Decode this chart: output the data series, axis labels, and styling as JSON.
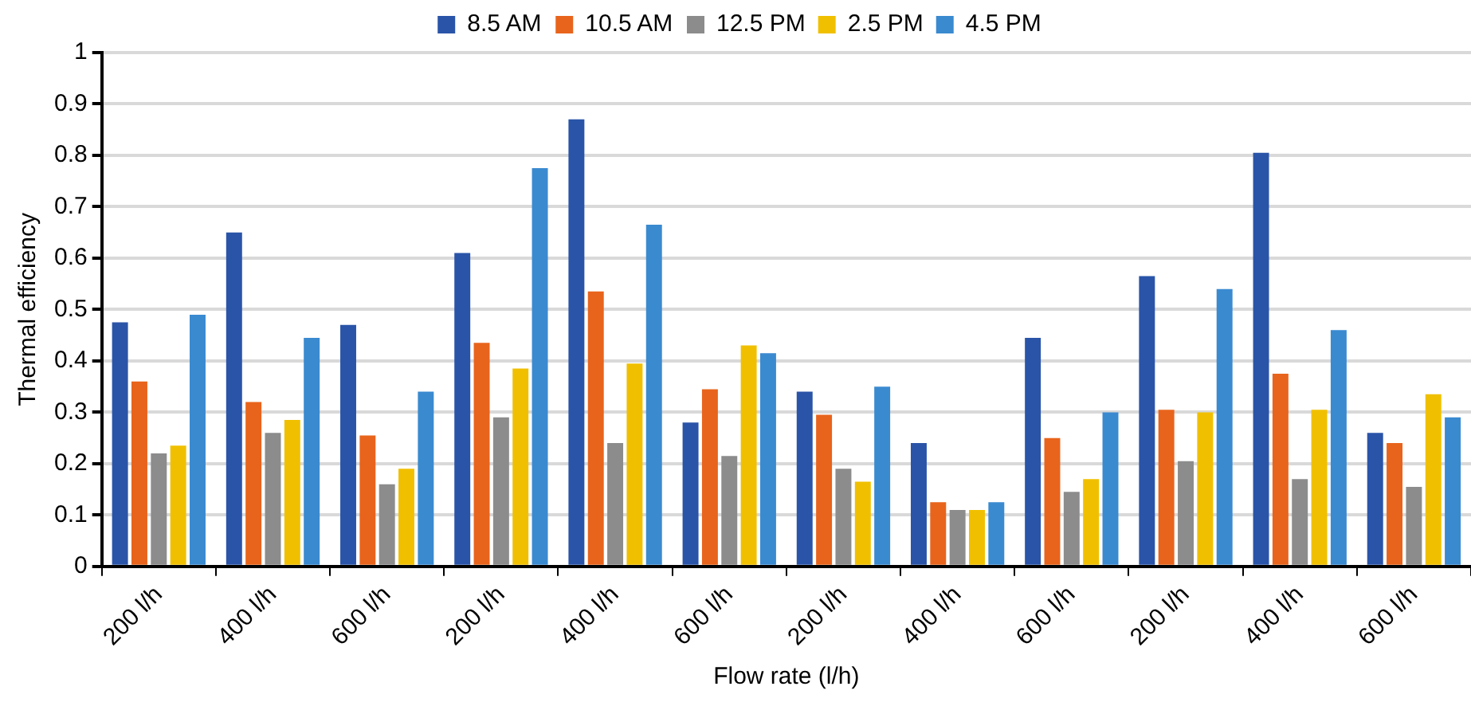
{
  "chart_data": {
    "type": "bar",
    "xlabel": "Flow rate (l/h)",
    "ylabel": "Thermal efficiency",
    "categories": [
      "200 l/h",
      "400 l/h",
      "600 l/h",
      "200 l/h",
      "400 l/h",
      "600 l/h",
      "200 l/h",
      "400 l/h",
      "600 l/h",
      "200 l/h",
      "400 l/h",
      "600 l/h"
    ],
    "series": [
      {
        "name": "8.5 AM",
        "color": "#2a54a8",
        "values": [
          0.475,
          0.65,
          0.47,
          0.61,
          0.87,
          0.28,
          0.34,
          0.24,
          0.445,
          0.565,
          0.805,
          0.26
        ]
      },
      {
        "name": "10.5 AM",
        "color": "#e8641c",
        "values": [
          0.36,
          0.32,
          0.255,
          0.435,
          0.535,
          0.345,
          0.295,
          0.125,
          0.25,
          0.305,
          0.375,
          0.24
        ]
      },
      {
        "name": "12.5 PM",
        "color": "#8c8c8c",
        "values": [
          0.22,
          0.26,
          0.16,
          0.29,
          0.24,
          0.215,
          0.19,
          0.11,
          0.145,
          0.205,
          0.17,
          0.155
        ]
      },
      {
        "name": "2.5 PM",
        "color": "#f0c000",
        "values": [
          0.235,
          0.285,
          0.19,
          0.385,
          0.395,
          0.43,
          0.165,
          0.11,
          0.17,
          0.3,
          0.305,
          0.335
        ]
      },
      {
        "name": "4.5 PM",
        "color": "#3a8ad0",
        "values": [
          0.49,
          0.445,
          0.34,
          0.775,
          0.665,
          0.415,
          0.35,
          0.125,
          0.3,
          0.54,
          0.46,
          0.29
        ]
      }
    ],
    "ylim": [
      0,
      1
    ],
    "yticks": [
      0,
      0.1,
      0.2,
      0.3,
      0.4,
      0.5,
      0.6,
      0.7,
      0.8,
      0.9,
      1
    ],
    "grid": "y",
    "legend": "top"
  }
}
